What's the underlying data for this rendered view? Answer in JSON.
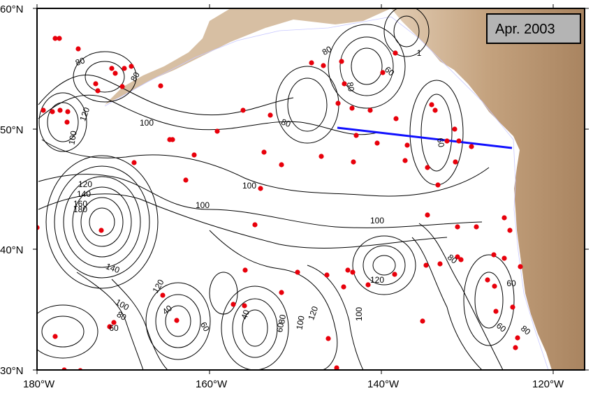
{
  "map": {
    "date_label": "Apr. 2003",
    "lon_labels": [
      "180°W",
      "160°W",
      "140°W",
      "120°W"
    ],
    "lat_labels": [
      "60°N",
      "50°N",
      "40°N",
      "30°N"
    ],
    "contour_labels": [
      "80",
      "120",
      "100",
      "80",
      "80",
      "60",
      "120",
      "140",
      "160",
      "180",
      "100",
      "100",
      "100",
      "100",
      "140",
      "120",
      "100",
      "80",
      "60",
      "40",
      "60",
      "40",
      "60",
      "80",
      "100",
      "120",
      "100",
      "120",
      "80",
      "60",
      "60",
      "80",
      "1",
      "60",
      "80",
      "80"
    ],
    "colors": {
      "contour": "#000000",
      "float_marker": "#e8000b",
      "transect_line": "#1010ff",
      "land": "#c9ab8a",
      "label_box": "#b4b4b4"
    }
  }
}
